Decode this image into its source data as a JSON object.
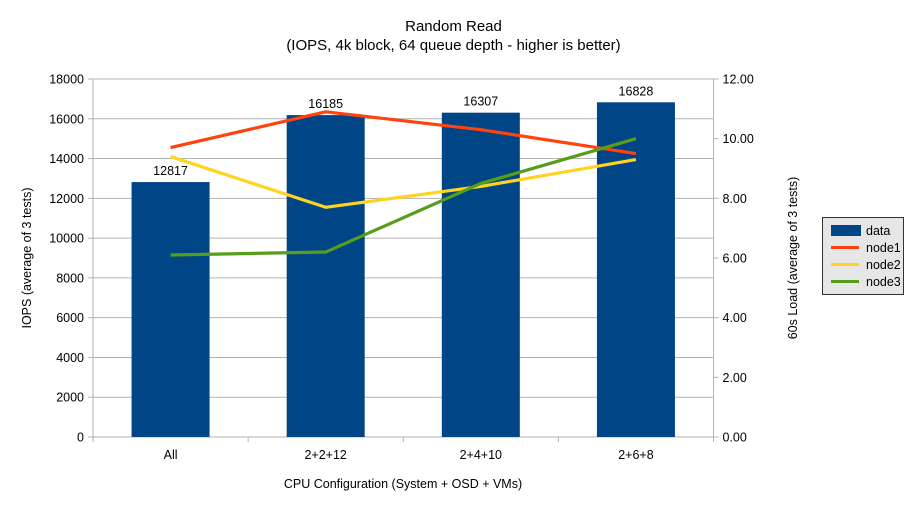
{
  "chart_data": {
    "type": "bar+line",
    "title": "Random Read",
    "subtitle": "(IOPS, 4k block, 64 queue depth - higher is better)",
    "categories": [
      "All",
      "2+2+12",
      "2+4+10",
      "2+6+8"
    ],
    "bar_series": {
      "name": "data",
      "values": [
        12817,
        16185,
        16307,
        16828
      ],
      "color": "#004586",
      "axis": "left"
    },
    "line_series": [
      {
        "name": "node1",
        "values": [
          9.7,
          10.9,
          10.3,
          9.5
        ],
        "color": "#ff420e",
        "axis": "right"
      },
      {
        "name": "node2",
        "values": [
          9.4,
          7.7,
          8.4,
          9.3
        ],
        "color": "#ffd320",
        "axis": "right"
      },
      {
        "name": "node3",
        "values": [
          6.1,
          6.2,
          8.5,
          10.0
        ],
        "color": "#579d1c",
        "axis": "right"
      }
    ],
    "left_axis": {
      "label": "IOPS (average of 3 tests)",
      "min": 0,
      "max": 18000,
      "step": 2000
    },
    "right_axis": {
      "label": "60s Load (average of 3 tests)",
      "min": 0,
      "max": 12,
      "step": 2,
      "decimals": 2
    },
    "x_axis": {
      "label": "CPU Configuration (System + OSD + VMs)"
    },
    "legend": {
      "position": "right",
      "items": [
        "data",
        "node1",
        "node2",
        "node3"
      ]
    },
    "grid": true,
    "grid_color": "#b3b3b3"
  }
}
